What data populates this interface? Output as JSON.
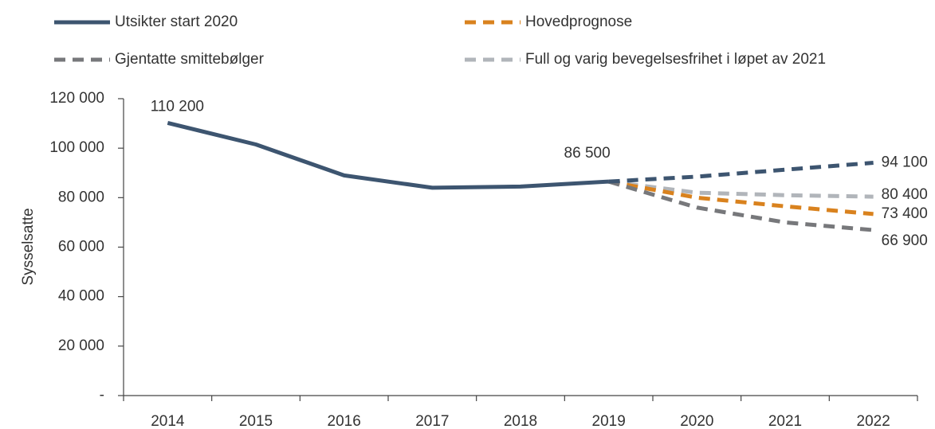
{
  "chart_data": {
    "type": "line",
    "y_label": "Sysselsatte",
    "categories": [
      "2014",
      "2015",
      "2016",
      "2017",
      "2018",
      "2019",
      "2020",
      "2021",
      "2022"
    ],
    "ylim": [
      0,
      120000
    ],
    "yticks": [
      {
        "value": 0,
        "label": "-"
      },
      {
        "value": 20000,
        "label": "20 000"
      },
      {
        "value": 40000,
        "label": "40 000"
      },
      {
        "value": 60000,
        "label": "60 000"
      },
      {
        "value": 80000,
        "label": "80 000"
      },
      {
        "value": 100000,
        "label": "100 000"
      },
      {
        "value": 120000,
        "label": "120 000"
      }
    ],
    "forecast_from": "2019",
    "series": [
      {
        "name": "Utsikter start 2020",
        "color": "#3d5570",
        "values": [
          110200,
          101500,
          89000,
          84000,
          84500,
          86500,
          88500,
          91300,
          94100
        ],
        "value_labels": [
          "110 200",
          null,
          null,
          null,
          null,
          "86 500",
          null,
          null,
          "94 100"
        ]
      },
      {
        "name": "Hovedprognose",
        "color": "#d9821e",
        "values": [
          null,
          null,
          null,
          null,
          null,
          86500,
          80000,
          76500,
          73400
        ],
        "value_labels": [
          null,
          null,
          null,
          null,
          null,
          null,
          null,
          null,
          "73 400"
        ]
      },
      {
        "name": "Gjentatte smittebølger",
        "color": "#77787b",
        "values": [
          null,
          null,
          null,
          null,
          null,
          86500,
          76000,
          70000,
          66900
        ],
        "value_labels": [
          null,
          null,
          null,
          null,
          null,
          null,
          null,
          null,
          "66 900"
        ]
      },
      {
        "name": "Full og varig bevegelsesfrihet i løpet av 2021",
        "color": "#b1b5ba",
        "values": [
          null,
          null,
          null,
          null,
          null,
          86500,
          82000,
          81000,
          80400
        ],
        "value_labels": [
          null,
          null,
          null,
          null,
          null,
          null,
          null,
          null,
          "80 400"
        ]
      }
    ]
  }
}
